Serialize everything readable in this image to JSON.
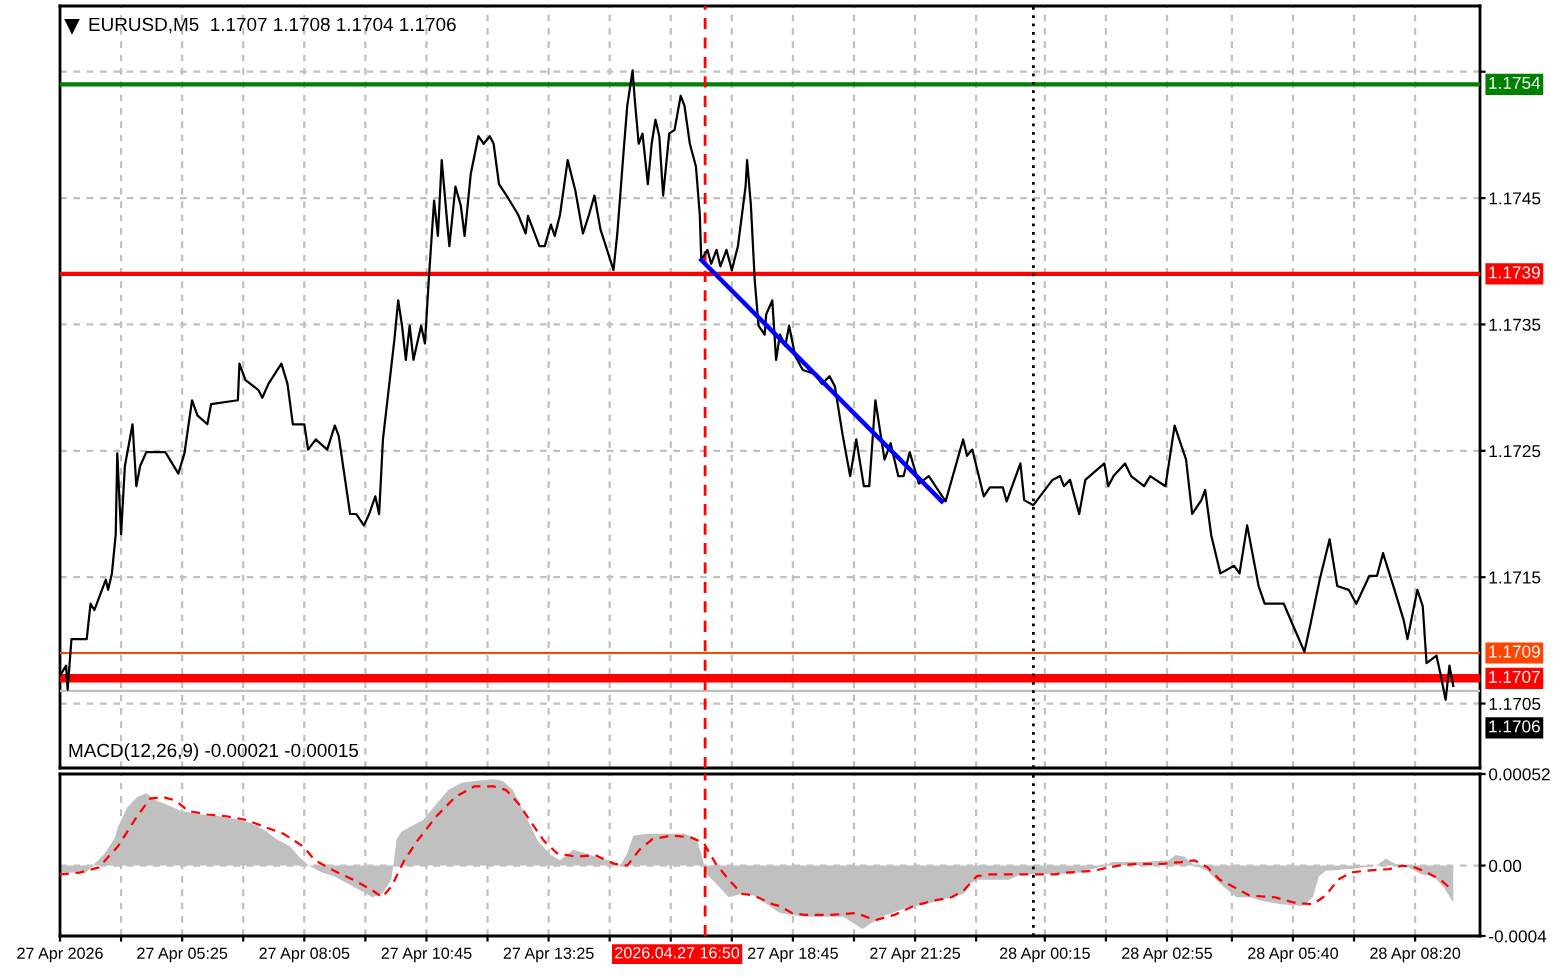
{
  "chart_data": [
    {
      "type": "line",
      "title": "EURUSD,M5  1.1707 1.1708 1.1704 1.1706",
      "xlim": [
        "2026-04-27T02:45",
        "2026-04-28T09:45"
      ],
      "ylim": [
        1.16999,
        1.17602
      ],
      "xticks": [
        {
          "value": "2026-04-27T02:45",
          "label": null
        },
        {
          "value": "2026-04-27T04:05",
          "label": null
        },
        {
          "value": "2026-04-27T05:25",
          "label": null
        },
        {
          "value": "2026-04-27T06:45",
          "label": null
        },
        {
          "value": "2026-04-27T08:05",
          "label": null
        },
        {
          "value": "2026-04-27T09:25",
          "label": null
        },
        {
          "value": "2026-04-27T10:45",
          "label": null
        },
        {
          "value": "2026-04-27T12:05",
          "label": null
        },
        {
          "value": "2026-04-27T13:25",
          "label": null
        },
        {
          "value": "2026-04-27T14:45",
          "label": null
        },
        {
          "value": "2026-04-27T16:05",
          "label": null
        },
        {
          "value": "2026-04-27T17:25",
          "label": null
        },
        {
          "value": "2026-04-27T18:45",
          "label": null
        },
        {
          "value": "2026-04-27T20:05",
          "label": null
        },
        {
          "value": "2026-04-27T21:25",
          "label": null
        },
        {
          "value": "2026-04-27T22:45",
          "label": null
        },
        {
          "value": "2026-04-28T00:15",
          "label": null
        },
        {
          "value": "2026-04-28T01:35",
          "label": null
        },
        {
          "value": "2026-04-28T02:55",
          "label": null
        },
        {
          "value": "2026-04-28T04:20",
          "label": null
        },
        {
          "value": "2026-04-28T05:40",
          "label": null
        },
        {
          "value": "2026-04-28T07:00",
          "label": null
        },
        {
          "value": "2026-04-28T08:20",
          "label": null
        }
      ],
      "yticks": [
        {
          "value": 1.1755,
          "label": null
        },
        1.1745,
        1.1735,
        1.1725,
        1.1715,
        1.1705
      ],
      "tick_labels": "y",
      "grid": true,
      "series": [
        {
          "color": "#000000",
          "x": [
            "2026-04-27T02:45",
            "2026-04-27T02:53",
            "2026-04-27T02:55",
            "2026-04-27T03:00",
            "2026-04-27T03:20",
            "2026-04-27T03:25",
            "2026-04-27T03:30",
            "2026-04-27T03:45",
            "2026-04-27T03:48",
            "2026-04-27T03:53",
            "2026-04-27T03:58",
            "2026-04-27T04:00",
            "2026-04-27T04:05",
            "2026-04-27T04:10",
            "2026-04-27T04:20",
            "2026-04-27T04:25",
            "2026-04-27T04:30",
            "2026-04-27T04:38",
            "2026-04-27T05:03",
            "2026-04-27T05:20",
            "2026-04-27T05:28",
            "2026-04-27T05:38",
            "2026-04-27T05:45",
            "2026-04-27T05:58",
            "2026-04-27T06:03",
            "2026-04-27T06:38",
            "2026-04-27T06:40",
            "2026-04-27T06:48",
            "2026-04-27T07:05",
            "2026-04-27T07:10",
            "2026-04-27T07:18",
            "2026-04-27T07:35",
            "2026-04-27T07:43",
            "2026-04-27T07:50",
            "2026-04-27T08:05",
            "2026-04-27T08:10",
            "2026-04-27T08:20",
            "2026-04-27T08:35",
            "2026-04-27T08:45",
            "2026-04-27T08:50",
            "2026-04-27T09:05",
            "2026-04-27T09:13",
            "2026-04-27T09:23",
            "2026-04-27T09:30",
            "2026-04-27T09:38",
            "2026-04-27T09:43",
            "2026-04-27T09:48",
            "2026-04-27T10:03",
            "2026-04-27T10:08",
            "2026-04-27T10:13",
            "2026-04-27T10:18",
            "2026-04-27T10:23",
            "2026-04-27T10:28",
            "2026-04-27T10:38",
            "2026-04-27T10:43",
            "2026-04-27T10:48",
            "2026-04-27T10:55",
            "2026-04-27T11:00",
            "2026-04-27T11:05",
            "2026-04-27T11:13",
            "2026-04-27T11:15",
            "2026-04-27T11:23",
            "2026-04-27T11:30",
            "2026-04-27T11:35",
            "2026-04-27T11:43",
            "2026-04-27T11:53",
            "2026-04-27T12:00",
            "2026-04-27T12:08",
            "2026-04-27T12:13",
            "2026-04-27T12:20",
            "2026-04-27T12:30",
            "2026-04-27T12:45",
            "2026-04-27T12:55",
            "2026-04-27T12:58",
            "2026-04-27T13:13",
            "2026-04-27T13:20",
            "2026-04-27T13:28",
            "2026-04-27T13:33",
            "2026-04-27T13:40",
            "2026-04-27T13:50",
            "2026-04-27T14:00",
            "2026-04-27T14:10",
            "2026-04-27T14:18",
            "2026-04-27T14:25",
            "2026-04-27T14:33",
            "2026-04-27T14:40",
            "2026-04-27T14:50",
            "2026-04-27T14:55",
            "2026-04-27T15:03",
            "2026-04-27T15:08",
            "2026-04-27T15:15",
            "2026-04-27T15:18",
            "2026-04-27T15:23",
            "2026-04-27T15:28",
            "2026-04-27T15:35",
            "2026-04-27T15:40",
            "2026-04-27T15:45",
            "2026-04-27T15:50",
            "2026-04-27T15:55",
            "2026-04-27T16:03",
            "2026-04-27T16:10",
            "2026-04-27T16:18",
            "2026-04-27T16:23",
            "2026-04-27T16:30",
            "2026-04-27T16:38",
            "2026-04-27T16:43",
            "2026-04-27T16:45",
            "2026-04-27T16:53",
            "2026-04-27T16:58",
            "2026-04-27T17:05",
            "2026-04-27T17:10",
            "2026-04-27T17:18",
            "2026-04-27T17:25",
            "2026-04-27T17:33",
            "2026-04-27T17:43",
            "2026-04-27T17:45",
            "2026-04-27T17:50",
            "2026-04-27T17:55",
            "2026-04-27T18:00",
            "2026-04-27T18:08",
            "2026-04-27T18:10",
            "2026-04-27T18:18",
            "2026-04-27T18:23",
            "2026-04-27T18:28",
            "2026-04-27T18:35",
            "2026-04-27T18:40",
            "2026-04-27T18:48",
            "2026-04-27T18:58",
            "2026-04-27T19:13",
            "2026-04-27T19:23",
            "2026-04-27T19:33",
            "2026-04-27T19:40",
            "2026-04-27T19:50",
            "2026-04-27T20:00",
            "2026-04-27T20:08",
            "2026-04-27T20:18",
            "2026-04-27T20:25",
            "2026-04-27T20:33",
            "2026-04-27T20:45",
            "2026-04-27T20:53",
            "2026-04-27T21:03",
            "2026-04-27T21:10",
            "2026-04-27T21:18",
            "2026-04-27T21:30",
            "2026-04-27T21:43",
            "2026-04-27T22:05",
            "2026-04-27T22:28",
            "2026-04-27T22:33",
            "2026-04-27T22:40",
            "2026-04-27T22:55",
            "2026-04-27T23:03",
            "2026-04-27T23:20",
            "2026-04-27T23:25",
            "2026-04-27T23:43",
            "2026-04-27T23:48",
            "2026-04-28T00:00",
            "2026-04-28T00:25",
            "2026-04-28T00:35",
            "2026-04-28T00:40",
            "2026-04-28T00:48",
            "2026-04-28T01:00",
            "2026-04-28T01:08",
            "2026-04-28T01:33",
            "2026-04-28T01:38",
            "2026-04-28T01:45",
            "2026-04-28T02:00",
            "2026-04-28T02:08",
            "2026-04-28T02:25",
            "2026-04-28T02:33",
            "2026-04-28T02:53",
            "2026-04-28T03:05",
            "2026-04-28T03:20",
            "2026-04-28T03:28",
            "2026-04-28T03:40",
            "2026-04-28T03:45",
            "2026-04-28T03:53",
            "2026-04-28T04:05",
            "2026-04-28T04:23",
            "2026-04-28T04:30",
            "2026-04-28T04:40",
            "2026-04-28T04:55",
            "2026-04-28T05:03",
            "2026-04-28T05:28",
            "2026-04-28T05:40",
            "2026-04-28T05:55",
            "2026-04-28T06:03",
            "2026-04-28T06:15",
            "2026-04-28T06:28",
            "2026-04-28T06:38",
            "2026-04-28T06:53",
            "2026-04-28T07:03",
            "2026-04-28T07:20",
            "2026-04-28T07:30",
            "2026-04-28T07:38",
            "2026-04-28T07:53",
            "2026-04-28T08:05",
            "2026-04-28T08:10",
            "2026-04-28T08:15",
            "2026-04-28T08:23",
            "2026-04-28T08:30",
            "2026-04-28T08:35",
            "2026-04-28T08:48",
            "2026-04-28T08:53",
            "2026-04-28T09:00",
            "2026-04-28T09:05",
            "2026-04-28T09:10"
          ],
          "values": [
            1.17072,
            1.1708,
            1.17061,
            1.17101,
            1.17101,
            1.17129,
            1.17124,
            1.17148,
            1.1714,
            1.17153,
            1.17184,
            1.17248,
            1.17184,
            1.17238,
            1.17271,
            1.17222,
            1.17238,
            1.17249,
            1.17249,
            1.17232,
            1.17248,
            1.1729,
            1.17278,
            1.17271,
            1.17287,
            1.1729,
            1.17319,
            1.17306,
            1.17298,
            1.17292,
            1.17303,
            1.17319,
            1.17303,
            1.17271,
            1.17271,
            1.17251,
            1.17259,
            1.17251,
            1.1727,
            1.17262,
            1.172,
            1.172,
            1.17191,
            1.172,
            1.17214,
            1.172,
            1.17259,
            1.17338,
            1.17369,
            1.17349,
            1.17322,
            1.17349,
            1.17322,
            1.17349,
            1.17335,
            1.17385,
            1.17448,
            1.1742,
            1.1748,
            1.17425,
            1.17412,
            1.17459,
            1.17444,
            1.1742,
            1.17469,
            1.17499,
            1.17493,
            1.17499,
            1.17493,
            1.17461,
            1.17452,
            1.17437,
            1.17422,
            1.17436,
            1.17412,
            1.17412,
            1.17429,
            1.1742,
            1.17437,
            1.1748,
            1.17456,
            1.17422,
            1.17437,
            1.17452,
            1.17425,
            1.17412,
            1.17393,
            1.17422,
            1.17485,
            1.17523,
            1.17551,
            1.17527,
            1.17493,
            1.17501,
            1.17461,
            1.17493,
            1.17512,
            1.17499,
            1.17452,
            1.17501,
            1.17504,
            1.17531,
            1.17523,
            1.17493,
            1.17475,
            1.17437,
            1.17401,
            1.17409,
            1.17398,
            1.17409,
            1.17396,
            1.17409,
            1.17393,
            1.17412,
            1.17459,
            1.1748,
            1.17444,
            1.17385,
            1.17349,
            1.17342,
            1.17358,
            1.17369,
            1.17322,
            1.17342,
            1.17333,
            1.17349,
            1.17325,
            1.17314,
            1.17311,
            1.17303,
            1.17309,
            1.17301,
            1.17263,
            1.1723,
            1.17259,
            1.17222,
            1.17222,
            1.1729,
            1.17243,
            1.17256,
            1.1723,
            1.1723,
            1.17249,
            1.17224,
            1.1723,
            1.1721,
            1.17259,
            1.17246,
            1.17251,
            1.17214,
            1.17221,
            1.17221,
            1.1721,
            1.1724,
            1.17211,
            1.17207,
            1.17227,
            1.1723,
            1.17222,
            1.17227,
            1.172,
            1.17227,
            1.1724,
            1.17222,
            1.1723,
            1.1724,
            1.1723,
            1.17222,
            1.1723,
            1.17222,
            1.1727,
            1.17243,
            1.172,
            1.17211,
            1.17219,
            1.17183,
            1.17153,
            1.17159,
            1.17153,
            1.17191,
            1.17143,
            1.17129,
            1.17129,
            1.17112,
            1.17091,
            1.17113,
            1.17148,
            1.1718,
            1.17143,
            1.1714,
            1.17129,
            1.17151,
            1.17151,
            1.17169,
            1.1714,
            1.17116,
            1.17101,
            1.17116,
            1.1714,
            1.17127,
            1.17082,
            1.17088,
            1.17074,
            1.17053,
            1.1708,
            1.17064
          ]
        },
        {
          "type": "line",
          "color": "#0000ff",
          "x": [
            "2026-04-27T16:45",
            "2026-04-27T22:00"
          ],
          "values": [
            1.17401,
            1.1721
          ]
        }
      ],
      "ref_lines": [
        {
          "axis": "y",
          "value": 1.1754,
          "label": "1.1754",
          "color": "#008000"
        },
        {
          "axis": "y",
          "value": 1.1739,
          "label": "1.1739",
          "color": "#ff0000"
        },
        {
          "axis": "y",
          "value": 1.1709,
          "label": "1.1709",
          "color": "#ff4500"
        },
        {
          "axis": "y",
          "value": 1.1707,
          "label": "1.1707",
          "color": "#ff0000"
        },
        {
          "axis": "y",
          "value": 1.1706,
          "label": "1.1706",
          "color": "#c0c0c0"
        },
        {
          "axis": "x",
          "value": "2026-04-27T16:50",
          "color": "#ff0000",
          "line_style": "dashed"
        },
        {
          "axis": "x",
          "value": "2026-04-28T00:00",
          "color": "#000000",
          "line_style": "dotted"
        }
      ]
    },
    {
      "type": "area",
      "title": "MACD(12,26,9) -0.00021 -0.00015",
      "xlim": [
        "2026-04-27T02:45",
        "2026-04-28T09:45"
      ],
      "ylim": [
        -0.0004,
        0.00052
      ],
      "xticks": [
        {
          "value": "2026-04-27T02:45",
          "label": "27 Apr 2026"
        },
        {
          "value": "2026-04-27T04:05",
          "label": null
        },
        {
          "value": "2026-04-27T05:25",
          "label": "27 Apr 05:25"
        },
        {
          "value": "2026-04-27T06:45",
          "label": null
        },
        {
          "value": "2026-04-27T08:05",
          "label": "27 Apr 08:05"
        },
        {
          "value": "2026-04-27T09:25",
          "label": null
        },
        {
          "value": "2026-04-27T10:45",
          "label": "27 Apr 10:45"
        },
        {
          "value": "2026-04-27T12:05",
          "label": null
        },
        {
          "value": "2026-04-27T13:25",
          "label": "27 Apr 13:25"
        },
        {
          "value": "2026-04-27T14:45",
          "label": null
        },
        {
          "value": "2026-04-27T16:05",
          "label": null
        },
        {
          "value": "2026-04-27T17:25",
          "label": null
        },
        {
          "value": "2026-04-27T18:45",
          "label": "27 Apr 18:45"
        },
        {
          "value": "2026-04-27T20:05",
          "label": null
        },
        {
          "value": "2026-04-27T21:25",
          "label": "27 Apr 21:25"
        },
        {
          "value": "2026-04-27T22:45",
          "label": null
        },
        {
          "value": "2026-04-28T00:15",
          "label": "28 Apr 00:15"
        },
        {
          "value": "2026-04-28T01:35",
          "label": null
        },
        {
          "value": "2026-04-28T02:55",
          "label": "28 Apr 02:55"
        },
        {
          "value": "2026-04-28T04:20",
          "label": null
        },
        {
          "value": "2026-04-28T05:40",
          "label": "28 Apr 05:40"
        },
        {
          "value": "2026-04-28T07:00",
          "label": null
        },
        {
          "value": "2026-04-28T08:20",
          "label": "28 Apr 08:20"
        }
      ],
      "yticks": [
        -0.0004,
        {
          "value": 0,
          "label": "0.00"
        },
        0.00052
      ],
      "grid": true,
      "series": [
        {
          "type": "area",
          "color": "#c0c0c0",
          "x": [
            "2026-04-27T02:45",
            "2026-04-27T03:19",
            "2026-04-27T03:28",
            "2026-04-27T03:44",
            "2026-04-27T03:57",
            "2026-04-27T04:01",
            "2026-04-27T04:13",
            "2026-04-27T04:26",
            "2026-04-27T04:38",
            "2026-04-27T04:51",
            "2026-04-27T05:03",
            "2026-04-27T05:24",
            "2026-04-27T05:49",
            "2026-04-27T06:14",
            "2026-04-27T06:39",
            "2026-04-27T06:56",
            "2026-04-27T07:13",
            "2026-04-27T07:29",
            "2026-04-27T07:46",
            "2026-04-27T07:58",
            "2026-04-27T08:11",
            "2026-04-27T08:28",
            "2026-04-27T08:44",
            "2026-04-27T09:01",
            "2026-04-27T09:18",
            "2026-04-27T09:34",
            "2026-04-27T09:47",
            "2026-04-27T09:59",
            "2026-04-27T10:06",
            "2026-04-27T10:12",
            "2026-04-27T10:24",
            "2026-04-27T10:41",
            "2026-04-27T10:58",
            "2026-04-27T11:14",
            "2026-04-27T11:31",
            "2026-04-27T11:48",
            "2026-04-27T12:13",
            "2026-04-27T12:25",
            "2026-04-27T12:38",
            "2026-04-27T12:54",
            "2026-04-27T13:11",
            "2026-04-27T13:28",
            "2026-04-27T13:40",
            "2026-04-27T13:57",
            "2026-04-27T14:13",
            "2026-04-27T14:34",
            "2026-04-27T14:51",
            "2026-04-27T14:59",
            "2026-04-27T15:08",
            "2026-04-27T15:16",
            "2026-04-27T15:33",
            "2026-04-27T15:58",
            "2026-04-27T16:23",
            "2026-04-27T16:39",
            "2026-04-27T16:46",
            "2026-04-27T16:52",
            "2026-04-27T17:04",
            "2026-04-27T17:21",
            "2026-04-27T17:38",
            "2026-04-27T17:54",
            "2026-04-27T18:11",
            "2026-04-27T18:28",
            "2026-04-27T19:01",
            "2026-04-27T19:51",
            "2026-04-27T20:16",
            "2026-04-27T20:41",
            "2026-04-27T21:14",
            "2026-04-27T21:39",
            "2026-04-27T22:04",
            "2026-04-27T22:29",
            "2026-04-27T22:38",
            "2026-04-27T22:46",
            "2026-04-27T23:28",
            "2026-04-27T23:44",
            "2026-04-28T00:28",
            "2026-04-28T01:01",
            "2026-04-28T01:34",
            "2026-04-28T01:43",
            "2026-04-28T02:24",
            "2026-04-28T02:58",
            "2026-04-28T03:06",
            "2026-04-28T03:18",
            "2026-04-28T03:31",
            "2026-04-28T03:48",
            "2026-04-28T04:04",
            "2026-04-28T04:26",
            "2026-04-28T04:43",
            "2026-04-28T04:59",
            "2026-04-28T05:24",
            "2026-04-28T05:53",
            "2026-04-28T06:06",
            "2026-04-28T06:14",
            "2026-04-28T06:23",
            "2026-04-28T06:56",
            "2026-04-28T07:29",
            "2026-04-28T07:42",
            "2026-04-28T07:54",
            "2026-04-28T08:11",
            "2026-04-28T08:28",
            "2026-04-28T08:44",
            "2026-04-28T08:57",
            "2026-04-28T09:10"
          ],
          "values": [
            -4e-05,
            -4e-05,
            0,
            7e-05,
            0.00016,
            0.00022,
            0.00033,
            0.00039,
            0.00041,
            0.00037,
            0.00035,
            0.00031,
            0.00029,
            0.00028,
            0.00026,
            0.00024,
            0.0002,
            0.00015,
            0.00011,
            5e-05,
            0,
            -4e-05,
            -6e-05,
            -0.0001,
            -0.00014,
            -0.00018,
            -0.00016,
            -8e-05,
            0.00015,
            0.00019,
            0.00022,
            0.00026,
            0.00035,
            0.00043,
            0.00047,
            0.00048,
            0.00049,
            0.00048,
            0.00043,
            0.00029,
            0.00014,
            6e-05,
            3e-05,
            9e-05,
            7e-05,
            4e-05,
            2e-05,
            0,
            7e-05,
            0.00017,
            0.00018,
            0.00018,
            0.00018,
            0.00015,
            5e-05,
            -5e-05,
            -0.0001,
            -0.00018,
            -0.00016,
            -0.00017,
            -0.00022,
            -0.00027,
            -0.00029,
            -0.00029,
            -0.00036,
            -0.00029,
            -0.00024,
            -0.00022,
            -0.00019,
            -0.00016,
            -0.0001,
            -8e-05,
            -8e-05,
            -5e-05,
            -5e-05,
            -4e-05,
            0,
            2e-05,
            2e-05,
            3e-05,
            6e-05,
            5e-05,
            0,
            -3e-05,
            -0.0001,
            -0.00018,
            -0.00018,
            -0.0002,
            -0.00022,
            -0.00023,
            -0.00018,
            -6e-05,
            -3e-05,
            -2e-05,
            0,
            4e-05,
            1e-05,
            -1e-05,
            -5e-05,
            -6e-05,
            -0.00012,
            -0.00021
          ]
        },
        {
          "type": "line",
          "color": "#ff0000",
          "line_style": "dashed",
          "x": [
            "2026-04-27T02:45",
            "2026-04-27T03:11",
            "2026-04-27T03:36",
            "2026-04-27T04:01",
            "2026-04-27T04:26",
            "2026-04-27T04:43",
            "2026-04-27T04:59",
            "2026-04-27T05:16",
            "2026-04-27T05:33",
            "2026-04-27T05:58",
            "2026-04-27T06:23",
            "2026-04-27T06:48",
            "2026-04-27T07:13",
            "2026-04-27T07:38",
            "2026-04-27T08:03",
            "2026-04-27T08:19",
            "2026-04-27T08:44",
            "2026-04-27T09:09",
            "2026-04-27T09:34",
            "2026-04-27T09:47",
            "2026-04-27T09:59",
            "2026-04-27T10:16",
            "2026-04-27T10:33",
            "2026-04-27T10:58",
            "2026-04-27T11:23",
            "2026-04-27T11:48",
            "2026-04-27T12:13",
            "2026-04-27T12:29",
            "2026-04-27T12:46",
            "2026-04-27T13:03",
            "2026-04-27T13:19",
            "2026-04-27T13:36",
            "2026-04-27T14:01",
            "2026-04-27T14:26",
            "2026-04-27T14:51",
            "2026-04-27T15:08",
            "2026-04-27T15:24",
            "2026-04-27T15:41",
            "2026-04-27T16:06",
            "2026-04-27T16:31",
            "2026-04-27T16:48",
            "2026-04-27T17:04",
            "2026-04-27T17:21",
            "2026-04-27T17:38",
            "2026-04-27T17:54",
            "2026-04-27T18:19",
            "2026-04-27T18:28",
            "2026-04-27T18:44",
            "2026-04-27T19:01",
            "2026-04-27T19:34",
            "2026-04-27T20:08",
            "2026-04-27T20:33",
            "2026-04-27T20:58",
            "2026-04-27T21:23",
            "2026-04-27T21:48",
            "2026-04-27T22:13",
            "2026-04-27T22:29",
            "2026-04-27T22:46",
            "2026-04-27T23:03",
            "2026-04-27T23:28",
            "2026-04-28T00:28",
            "2026-04-28T00:44",
            "2026-04-28T01:18",
            "2026-04-28T01:51",
            "2026-04-28T02:16",
            "2026-04-28T02:49",
            "2026-04-28T03:14",
            "2026-04-28T03:31",
            "2026-04-28T03:48",
            "2026-04-28T04:04",
            "2026-04-28T04:26",
            "2026-04-28T04:43",
            "2026-04-28T05:16",
            "2026-04-28T05:41",
            "2026-04-28T06:06",
            "2026-04-28T06:23",
            "2026-04-28T06:39",
            "2026-04-28T06:56",
            "2026-04-28T07:13",
            "2026-04-28T07:46",
            "2026-04-28T08:03",
            "2026-04-28T08:19",
            "2026-04-28T08:36",
            "2026-04-28T08:53",
            "2026-04-28T09:09"
          ],
          "values": [
            -5e-05,
            -4e-05,
            -1e-05,
            0.00011,
            0.00028,
            0.00038,
            0.00039,
            0.00037,
            0.00031,
            0.00029,
            0.00028,
            0.00026,
            0.00022,
            0.00018,
            0.00011,
            3e-05,
            -3e-05,
            -8e-05,
            -0.00014,
            -0.00018,
            -0.00012,
            3e-05,
            0.00014,
            0.00028,
            0.00039,
            0.00045,
            0.00045,
            0.00043,
            0.00035,
            0.00024,
            0.00014,
            7e-05,
            5e-05,
            6e-05,
            1e-05,
            0,
            9e-05,
            0.00015,
            0.00017,
            0.00016,
            0.00013,
            1e-05,
            -8e-05,
            -0.00016,
            -0.00017,
            -0.00022,
            -0.00023,
            -0.00027,
            -0.00028,
            -0.00028,
            -0.00027,
            -0.00031,
            -0.00028,
            -0.00023,
            -0.0002,
            -0.00018,
            -0.00014,
            -6e-05,
            -5e-05,
            -5e-05,
            -5e-05,
            -4e-05,
            -3e-05,
            0,
            1e-05,
            1e-05,
            2e-05,
            3e-05,
            -1e-05,
            -8e-05,
            -0.00013,
            -0.00017,
            -0.00018,
            -0.00021,
            -0.00022,
            -0.00017,
            -8e-05,
            -4e-05,
            -3e-05,
            -2e-05,
            0,
            -1e-05,
            -4e-05,
            -8e-05,
            -0.00014
          ]
        }
      ],
      "ref_lines": [
        {
          "axis": "x",
          "value": "2026-04-27T16:50",
          "label": "2026.04.27 16:50",
          "color": "#ff0000",
          "line_style": "dashed"
        },
        {
          "axis": "x",
          "value": "2026-04-28T00:00",
          "color": "#000000",
          "line_style": "dotted"
        }
      ]
    }
  ]
}
